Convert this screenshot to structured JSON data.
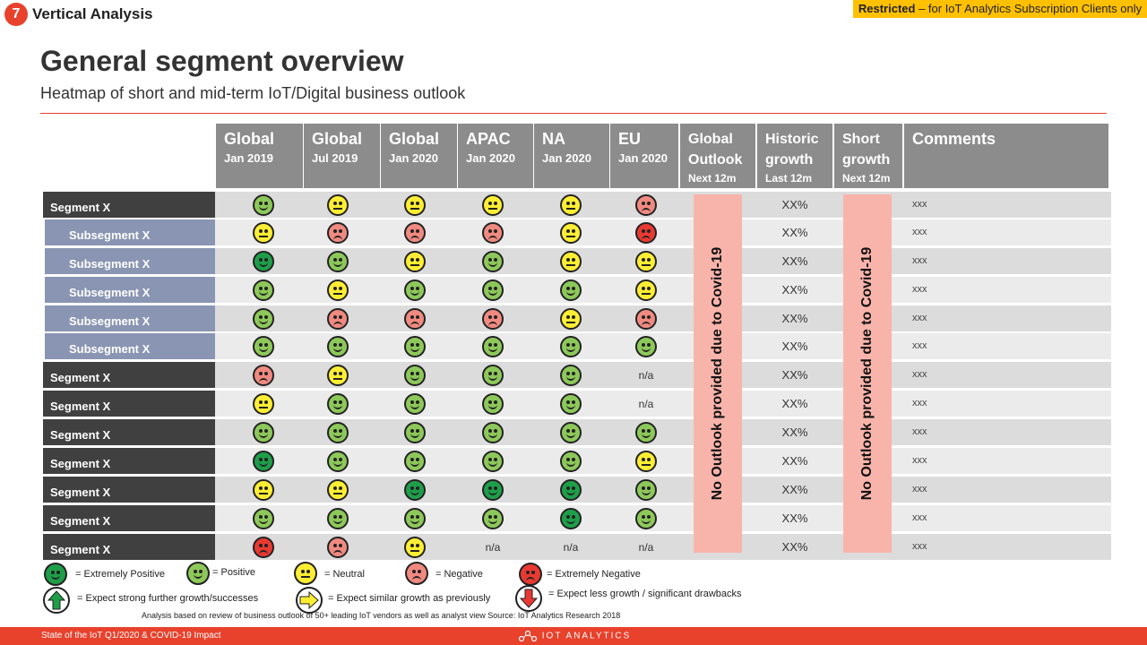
{
  "header": {
    "section_number": "7",
    "section_title": "Vertical Analysis",
    "restricted_bold": "Restricted",
    "restricted_rest": " – for IoT Analytics Subscription Clients only"
  },
  "title": "General segment overview",
  "subtitle": "Heatmap of short and mid-term IoT/Digital business outlook",
  "columns": [
    {
      "l1": "Global",
      "l2": "Jan 2019"
    },
    {
      "l1": "Global",
      "l2": "Jul 2019"
    },
    {
      "l1": "Global",
      "l2": "Jan 2020"
    },
    {
      "l1": "APAC",
      "l2": "Jan 2020"
    },
    {
      "l1": "NA",
      "l2": "Jan 2020"
    },
    {
      "l1": "EU",
      "l2": "Jan 2020"
    },
    {
      "l1": "Global Outlook",
      "l2": "Next 12m"
    },
    {
      "l1": "Historic growth",
      "l2": "Last 12m"
    },
    {
      "l1": "Short growth",
      "l2": "Next 12m"
    },
    {
      "l1": "Comments",
      "l2": ""
    }
  ],
  "rows": [
    {
      "label": "Segment X",
      "type": "segment",
      "cells": [
        "pos",
        "neu",
        "neu",
        "neu",
        "neu",
        "neg"
      ],
      "historic": "XX%",
      "comment": "xxx"
    },
    {
      "label": "Subsegment X",
      "type": "sub",
      "cells": [
        "neu",
        "neg",
        "neg",
        "neg",
        "neu",
        "xneg"
      ],
      "historic": "XX%",
      "comment": "xxx"
    },
    {
      "label": "Subsegment X",
      "type": "sub",
      "cells": [
        "xpos",
        "pos",
        "neu",
        "pos",
        "neu",
        "neu"
      ],
      "historic": "XX%",
      "comment": "xxx"
    },
    {
      "label": "Subsegment X",
      "type": "sub",
      "cells": [
        "pos",
        "neu",
        "pos",
        "pos",
        "pos",
        "neu"
      ],
      "historic": "XX%",
      "comment": "xxx"
    },
    {
      "label": "Subsegment X",
      "type": "sub",
      "cells": [
        "pos",
        "neg",
        "neg",
        "neg",
        "neu",
        "neg"
      ],
      "historic": "XX%",
      "comment": "xxx"
    },
    {
      "label": "Subsegment X",
      "type": "sub",
      "cells": [
        "pos",
        "pos",
        "pos",
        "pos",
        "pos",
        "pos"
      ],
      "historic": "XX%",
      "comment": "xxx"
    },
    {
      "label": "Segment X",
      "type": "segment",
      "cells": [
        "neg",
        "neu",
        "pos",
        "pos",
        "pos",
        "n/a"
      ],
      "historic": "XX%",
      "comment": "xxx"
    },
    {
      "label": "Segment X",
      "type": "segment",
      "cells": [
        "neu",
        "pos",
        "pos",
        "pos",
        "pos",
        "n/a"
      ],
      "historic": "XX%",
      "comment": "xxx"
    },
    {
      "label": "Segment X",
      "type": "segment",
      "cells": [
        "pos",
        "pos",
        "pos",
        "pos",
        "pos",
        "pos"
      ],
      "historic": "XX%",
      "comment": "xxx"
    },
    {
      "label": "Segment X",
      "type": "segment",
      "cells": [
        "xpos",
        "pos",
        "pos",
        "pos",
        "pos",
        "neu"
      ],
      "historic": "XX%",
      "comment": "xxx"
    },
    {
      "label": "Segment X",
      "type": "segment",
      "cells": [
        "neu",
        "neu",
        "xpos",
        "xpos",
        "xpos",
        "pos"
      ],
      "historic": "XX%",
      "comment": "xxx"
    },
    {
      "label": "Segment X",
      "type": "segment",
      "cells": [
        "pos",
        "pos",
        "pos",
        "pos",
        "xpos",
        "pos"
      ],
      "historic": "XX%",
      "comment": "xxx"
    },
    {
      "label": "Segment X",
      "type": "segment",
      "cells": [
        "xneg",
        "neg",
        "neu",
        "n/a",
        "n/a",
        "n/a"
      ],
      "historic": "XX%",
      "comment": "xxx"
    }
  ],
  "covid_note": "No Outlook provided due to Covid-19",
  "legend": {
    "extremely_positive": "= Extremely Positive",
    "positive": "= Positive",
    "neutral": "= Neutral",
    "negative": "= Negative",
    "extremely_negative": "=  Extremely Negative",
    "strong_growth": "= Expect strong further growth/successes",
    "similar_growth": "= Expect similar growth as previously",
    "less_growth": "= Expect less growth / significant drawbacks"
  },
  "analysis_note": "Analysis based on review of business outlook of 50+ leading IoT vendors as well as analyst view  Source: IoT Analytics Research 2018",
  "footer": {
    "text": "State of the IoT Q1/2020 & COVID-19 Impact",
    "logo": "IOT ANALYTICS"
  },
  "colors": {
    "accent": "#e8412c",
    "restricted_bg": "#ffc000",
    "header_bg": "#8c8c8c",
    "segment_bg": "#404040",
    "subsegment_bg": "#8a95b3",
    "row_light": "#ebebeb",
    "row_dark": "#dcdcdc",
    "covid_box": "#f8b4ab",
    "extremely_positive": "#1f9e4a",
    "positive": "#8dc85a",
    "neutral": "#ffee33",
    "negative": "#f08a80",
    "extremely_negative": "#e83a32"
  }
}
